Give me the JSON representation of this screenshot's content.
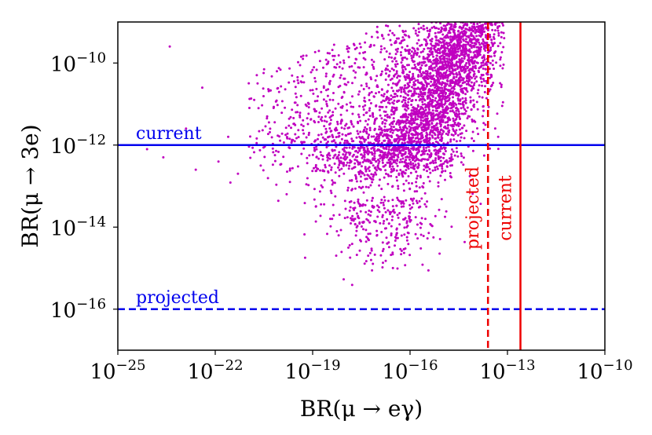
{
  "chart_data": {
    "type": "scatter",
    "x_scale": "log",
    "y_scale": "log",
    "xlim_exp": [
      -25,
      -10
    ],
    "ylim_exp": [
      -17,
      -9
    ],
    "x_ticks": [
      {
        "base": "10",
        "exp": "−25"
      },
      {
        "base": "10",
        "exp": "−22"
      },
      {
        "base": "10",
        "exp": "−19"
      },
      {
        "base": "10",
        "exp": "−16"
      },
      {
        "base": "10",
        "exp": "−13"
      },
      {
        "base": "10",
        "exp": "−10"
      }
    ],
    "y_ticks": [
      {
        "base": "10",
        "exp": "−10"
      },
      {
        "base": "10",
        "exp": "−12"
      },
      {
        "base": "10",
        "exp": "−14"
      },
      {
        "base": "10",
        "exp": "−16"
      }
    ],
    "xlabel": "BR(μ → eγ)",
    "ylabel": "BR(μ → 3e)",
    "scatter_color": "#c000c0",
    "scatter_description": "dense cloud of points; core spans BR(μ→eγ) ≈ 1e-17 to 1e-13.5 and BR(μ→3e) ≈ 1e-13 to 1e-9, with sparse tail toward 1e-24",
    "reference_lines": [
      {
        "orientation": "horizontal",
        "value_exp": -12,
        "label": "current",
        "color": "#0000ee",
        "style": "solid"
      },
      {
        "orientation": "horizontal",
        "value_exp": -16,
        "label": "projected",
        "color": "#0000ee",
        "style": "dashed"
      },
      {
        "orientation": "vertical",
        "value_exp": -13.6,
        "label": "projected",
        "color": "#ee0000",
        "style": "dashed"
      },
      {
        "orientation": "vertical",
        "value_exp": -12.6,
        "label": "current",
        "color": "#ee0000",
        "style": "solid"
      }
    ]
  }
}
